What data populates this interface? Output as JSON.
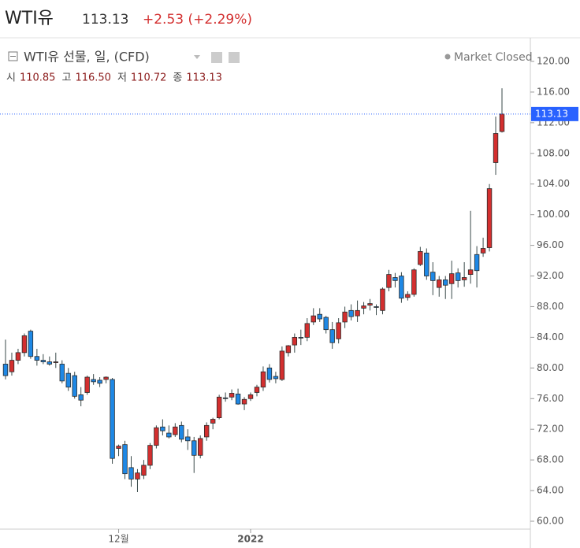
{
  "header": {
    "title": "WTI유",
    "price": "113.13",
    "change": "+2.53 (+2.29%)"
  },
  "legend": {
    "name": "WTI유 선물, 일, (CFD)",
    "status": "Market Closed",
    "ohlc": [
      {
        "label": "시",
        "value": "110.85"
      },
      {
        "label": "고",
        "value": "116.50"
      },
      {
        "label": "저",
        "value": "110.72"
      },
      {
        "label": "종",
        "value": "113.13"
      }
    ]
  },
  "chart_data": {
    "type": "candlestick",
    "up_color": "#d32f2f",
    "down_color": "#1e88e5",
    "line_color": "#2962ff",
    "categories": [
      null,
      null,
      null,
      null,
      null,
      null,
      null,
      null,
      null,
      null,
      null,
      null,
      null,
      null,
      null,
      null,
      null,
      null,
      "12월",
      null,
      null,
      null,
      null,
      null,
      null,
      null,
      null,
      null,
      null,
      null,
      null,
      null,
      null,
      null,
      null,
      null,
      null,
      null,
      null,
      "2022",
      null,
      null,
      null,
      null,
      null,
      null,
      null,
      null,
      null,
      null,
      null,
      null,
      null,
      null,
      null,
      null,
      null,
      null,
      null,
      null,
      null,
      null,
      null,
      null,
      null,
      null,
      null,
      null,
      null,
      null,
      null,
      null,
      null,
      null,
      null,
      null,
      null,
      null,
      null,
      null
    ],
    "open": [
      80.5,
      79.5,
      81.0,
      82.0,
      84.8,
      81.5,
      81.0,
      80.8,
      80.8,
      80.5,
      79.3,
      79.0,
      76.5,
      76.8,
      78.5,
      78.4,
      78.5,
      78.5,
      69.5,
      70.0,
      67.0,
      65.5,
      66.0,
      67.3,
      69.9,
      72.3,
      71.5,
      71.3,
      72.5,
      71.0,
      70.5,
      68.6,
      71.0,
      72.8,
      73.5,
      76.1,
      76.2,
      76.6,
      75.3,
      76.0,
      76.8,
      77.5,
      80.0,
      78.9,
      78.5,
      82.0,
      83.0,
      84.0,
      84.0,
      86.0,
      87.0,
      86.6,
      85.0,
      83.8,
      86.0,
      87.5,
      86.8,
      87.8,
      88.2,
      88.0,
      87.5,
      90.5,
      91.8,
      92.0,
      89.2,
      89.6,
      93.5,
      95.0,
      92.5,
      90.5,
      91.5,
      91.0,
      92.4,
      91.5,
      92.2,
      94.8,
      95.0,
      95.7,
      106.8,
      110.85
    ],
    "high": [
      83.7,
      82.0,
      82.5,
      84.5,
      85.0,
      82.5,
      81.8,
      81.5,
      82.0,
      81.0,
      80.0,
      79.5,
      77.5,
      79.0,
      79.2,
      78.8,
      78.9,
      78.7,
      70.0,
      70.5,
      68.5,
      66.8,
      68.0,
      70.2,
      72.5,
      73.3,
      72.5,
      72.8,
      73.0,
      72.0,
      71.0,
      71.2,
      72.9,
      73.5,
      76.5,
      76.8,
      77.2,
      77.3,
      76.2,
      76.8,
      77.8,
      80.2,
      80.5,
      79.5,
      82.8,
      83.0,
      84.5,
      85.0,
      86.5,
      87.8,
      87.8,
      86.8,
      86.0,
      86.5,
      88.0,
      88.3,
      88.8,
      88.6,
      89.0,
      88.3,
      90.5,
      92.8,
      92.4,
      92.5,
      90.0,
      93.0,
      95.8,
      95.6,
      93.8,
      92.0,
      92.0,
      94.0,
      93.0,
      93.8,
      100.5,
      95.9,
      97.0,
      104.0,
      112.8,
      116.5
    ],
    "low": [
      78.5,
      79.0,
      80.5,
      81.5,
      81.2,
      80.3,
      80.5,
      80.3,
      80.0,
      78.0,
      77.0,
      76.0,
      75.0,
      76.5,
      77.8,
      77.5,
      78.0,
      67.5,
      68.5,
      65.5,
      64.5,
      63.8,
      65.5,
      66.8,
      69.5,
      71.2,
      70.8,
      71.0,
      70.3,
      69.3,
      66.3,
      68.2,
      70.5,
      72.0,
      73.3,
      75.6,
      75.8,
      75.2,
      74.5,
      75.7,
      76.3,
      77.0,
      78.1,
      78.0,
      78.3,
      81.5,
      82.0,
      83.0,
      83.5,
      85.6,
      86.0,
      84.5,
      82.5,
      83.2,
      85.2,
      86.2,
      86.0,
      87.0,
      87.5,
      86.9,
      87.0,
      90.0,
      90.5,
      88.5,
      88.8,
      89.3,
      93.3,
      91.5,
      89.5,
      89.3,
      89.0,
      89.0,
      90.5,
      90.6,
      91.0,
      90.5,
      94.5,
      95.2,
      105.2,
      110.72
    ],
    "close": [
      79.0,
      81.0,
      82.0,
      84.2,
      81.5,
      81.0,
      80.8,
      80.5,
      80.8,
      78.3,
      77.5,
      76.3,
      75.8,
      78.8,
      78.2,
      78.0,
      78.8,
      68.2,
      69.8,
      66.2,
      65.5,
      66.3,
      67.3,
      69.9,
      72.2,
      71.8,
      71.0,
      72.3,
      70.7,
      70.5,
      68.6,
      70.8,
      72.5,
      73.3,
      76.2,
      76.0,
      76.7,
      75.3,
      75.9,
      76.5,
      77.5,
      79.5,
      78.5,
      78.6,
      82.2,
      82.9,
      84.0,
      83.9,
      85.8,
      86.8,
      86.4,
      85.0,
      83.3,
      85.9,
      87.3,
      86.7,
      87.5,
      88.1,
      88.4,
      87.9,
      90.3,
      92.2,
      91.4,
      89.1,
      89.6,
      92.8,
      95.2,
      92.0,
      91.4,
      91.5,
      90.8,
      92.3,
      91.4,
      91.8,
      92.8,
      92.7,
      95.6,
      103.4,
      110.6,
      113.13
    ],
    "last_price": {
      "value": 113.13,
      "label": "113.13"
    },
    "ylim": [
      60,
      120
    ],
    "yticks": [
      {
        "value": 60,
        "label": "60.00"
      },
      {
        "value": 64,
        "label": "64.00"
      },
      {
        "value": 68,
        "label": "68.00"
      },
      {
        "value": 72,
        "label": "72.00"
      },
      {
        "value": 76,
        "label": "76.00"
      },
      {
        "value": 80,
        "label": "80.00"
      },
      {
        "value": 84,
        "label": "84.00"
      },
      {
        "value": 88,
        "label": "88.00"
      },
      {
        "value": 92,
        "label": "92.00"
      },
      {
        "value": 96,
        "label": "96.00"
      },
      {
        "value": 100,
        "label": "100.00"
      },
      {
        "value": 104,
        "label": "104.00"
      },
      {
        "value": 108,
        "label": "108.00"
      },
      {
        "value": 112,
        "label": "112.00"
      },
      {
        "value": 116,
        "label": "116.00"
      },
      {
        "value": 120,
        "label": "120.00"
      }
    ]
  }
}
